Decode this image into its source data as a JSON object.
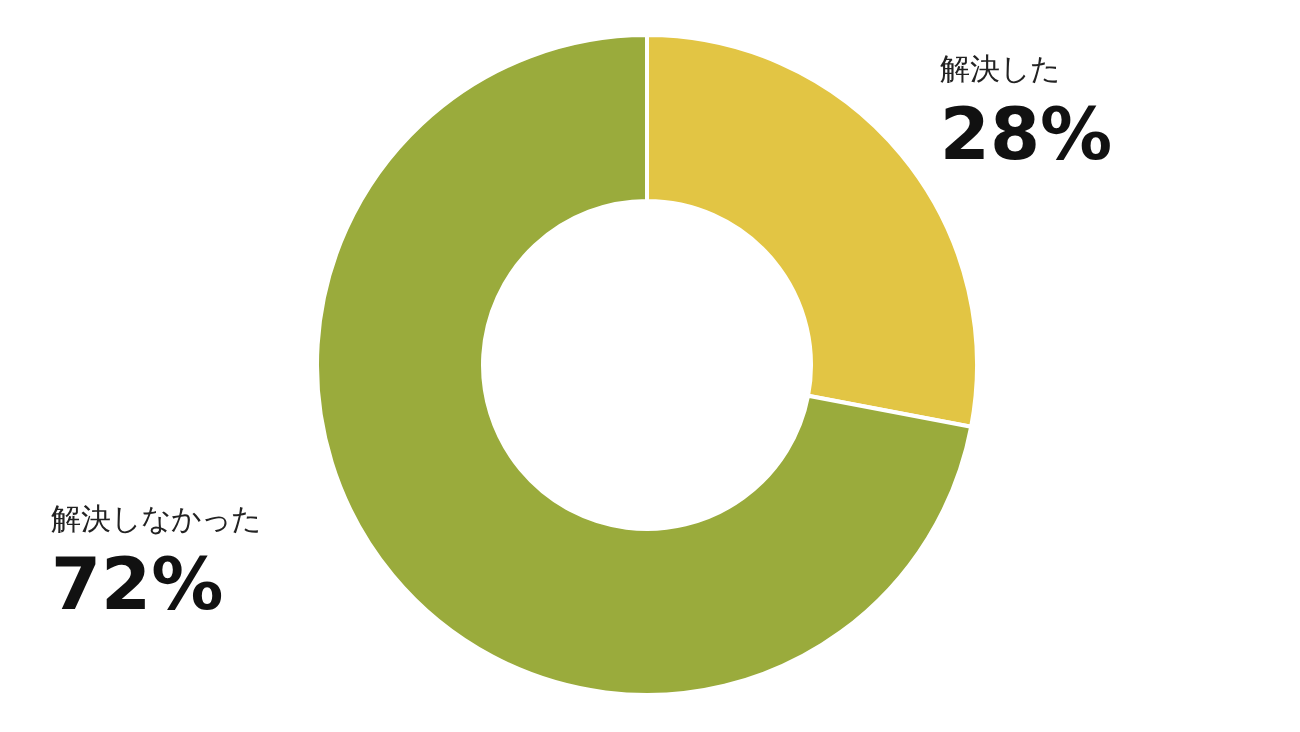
{
  "chart_data": {
    "type": "donut",
    "categories": [
      "解決した",
      "解決しなかった"
    ],
    "values": [
      28,
      72
    ],
    "colors": [
      "#e2c544",
      "#9aab3c"
    ],
    "value_labels": [
      "28%",
      "72%"
    ]
  }
}
